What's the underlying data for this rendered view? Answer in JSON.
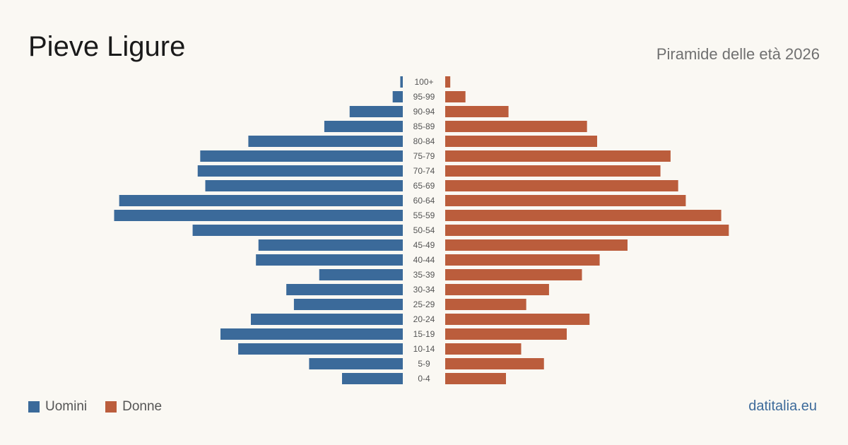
{
  "header": {
    "title": "Pieve Ligure",
    "subtitle": "Piramide delle età 2026"
  },
  "legend": {
    "men_label": "Uomini",
    "women_label": "Donne"
  },
  "footer": {
    "credit": "datitalia.eu"
  },
  "colors": {
    "men": "#3b6a9a",
    "women": "#bb5d3c",
    "background": "#faf8f3",
    "tick_text": "#555555"
  },
  "chart_data": {
    "type": "bar",
    "orientation": "horizontal-pyramid",
    "categories": [
      "100+",
      "95-99",
      "90-94",
      "85-89",
      "80-84",
      "75-79",
      "70-74",
      "65-69",
      "60-64",
      "55-59",
      "50-54",
      "45-49",
      "40-44",
      "35-39",
      "30-34",
      "25-29",
      "20-24",
      "15-19",
      "10-14",
      "5-9",
      "0-4"
    ],
    "series": [
      {
        "name": "Uomini",
        "values": [
          1,
          4,
          21,
          31,
          61,
          80,
          81,
          78,
          112,
          114,
          83,
          57,
          58,
          33,
          46,
          43,
          60,
          72,
          65,
          37,
          24
        ]
      },
      {
        "name": "Donne",
        "values": [
          2,
          8,
          25,
          56,
          60,
          89,
          85,
          92,
          95,
          109,
          112,
          72,
          61,
          54,
          41,
          32,
          57,
          48,
          30,
          39,
          24
        ]
      }
    ],
    "xlim": [
      0,
      120
    ],
    "grid": false,
    "legend_position": "bottom-left"
  }
}
